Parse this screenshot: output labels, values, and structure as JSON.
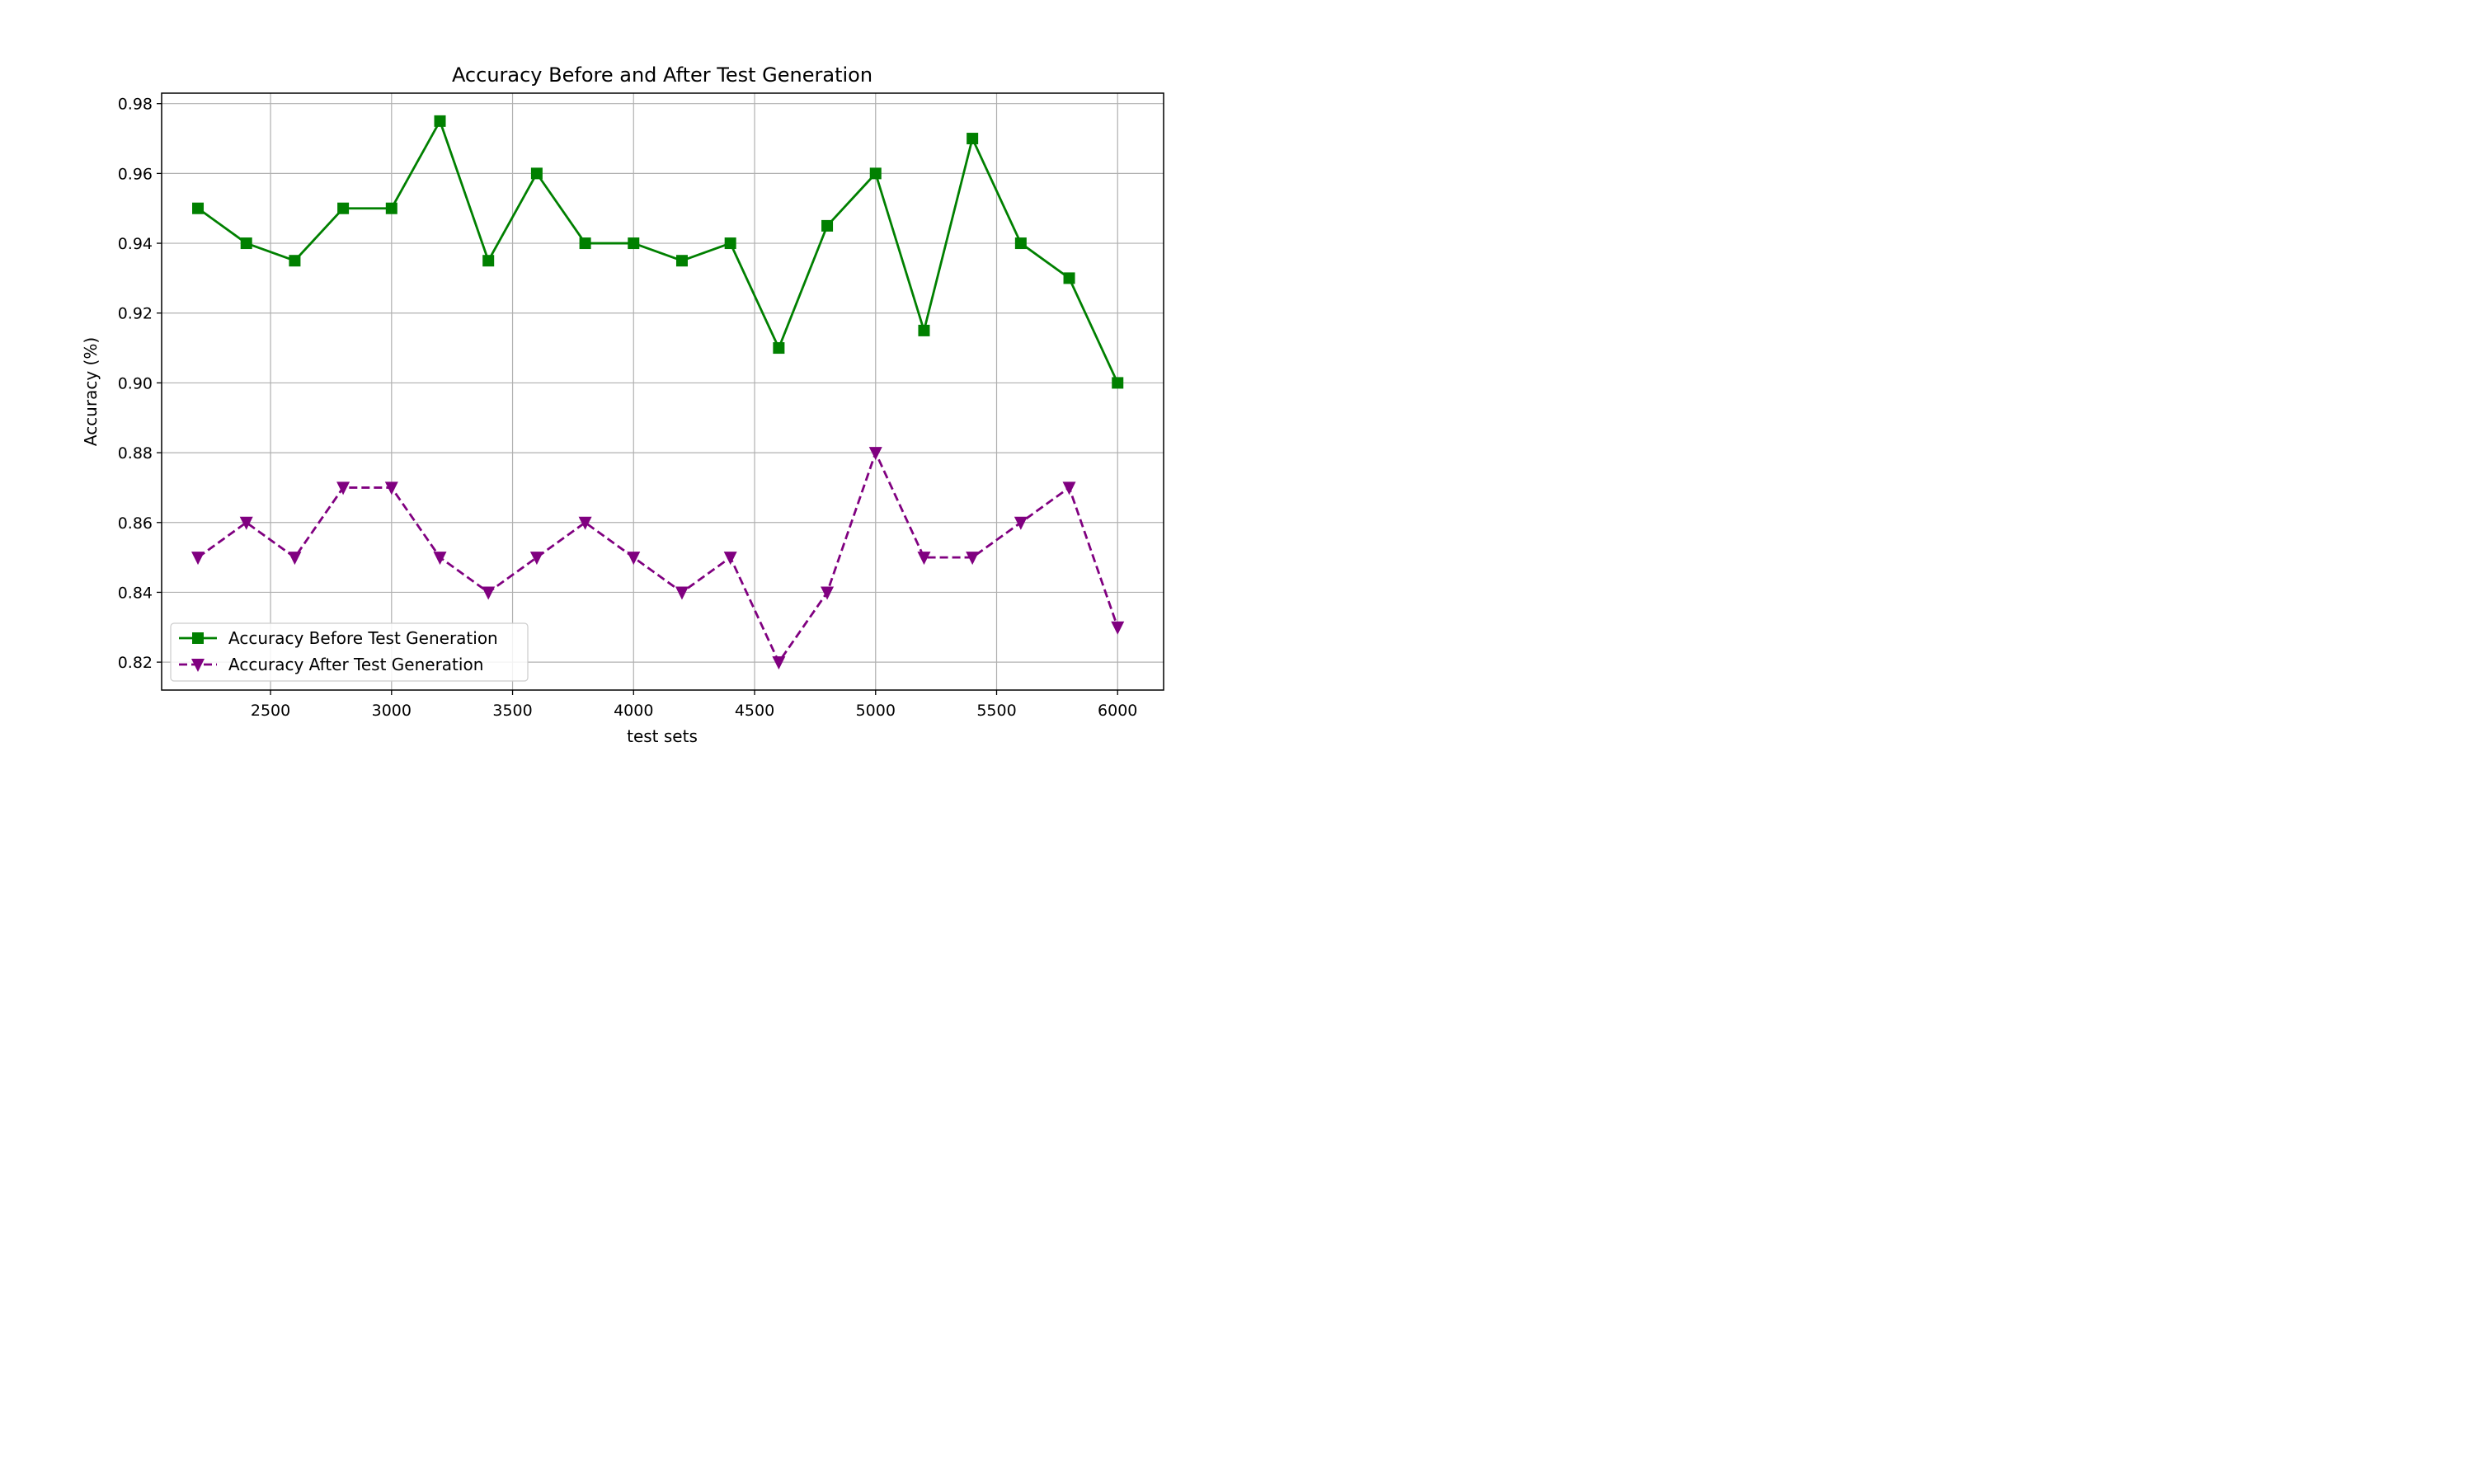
{
  "chart_data": {
    "type": "line",
    "title": "Accuracy Before and After Test Generation",
    "xlabel": "test sets",
    "ylabel": "Accuracy (%)",
    "x": [
      2200,
      2400,
      2600,
      2800,
      3000,
      3200,
      3400,
      3600,
      3800,
      4000,
      4200,
      4400,
      4600,
      4800,
      5000,
      5200,
      5400,
      5600,
      5800,
      6000
    ],
    "xlim": [
      2050,
      6190
    ],
    "ylim": [
      0.812,
      0.983
    ],
    "xticks": [
      2500,
      3000,
      3500,
      4000,
      4500,
      5000,
      5500,
      6000
    ],
    "yticks": [
      0.82,
      0.84,
      0.86,
      0.88,
      0.9,
      0.92,
      0.94,
      0.96,
      0.98
    ],
    "xtick_labels": [
      "2500",
      "3000",
      "3500",
      "4000",
      "4500",
      "5000",
      "5500",
      "6000"
    ],
    "ytick_labels": [
      "0.82",
      "0.84",
      "0.86",
      "0.88",
      "0.90",
      "0.92",
      "0.94",
      "0.96",
      "0.98"
    ],
    "grid": true,
    "legend_position": "lower-left",
    "series": [
      {
        "name": "Accuracy Before Test Generation",
        "color": "#008000",
        "line_style": "solid",
        "marker": "square",
        "values": [
          0.95,
          0.94,
          0.935,
          0.95,
          0.95,
          0.975,
          0.935,
          0.96,
          0.94,
          0.94,
          0.935,
          0.94,
          0.91,
          0.945,
          0.96,
          0.915,
          0.97,
          0.94,
          0.93,
          0.9
        ]
      },
      {
        "name": "Accuracy After Test Generation",
        "color": "#800080",
        "line_style": "dashed",
        "marker": "triangle-down",
        "values": [
          0.85,
          0.86,
          0.85,
          0.87,
          0.87,
          0.85,
          0.84,
          0.85,
          0.86,
          0.85,
          0.84,
          0.85,
          0.82,
          0.84,
          0.88,
          0.85,
          0.85,
          0.86,
          0.87,
          0.83
        ]
      }
    ]
  }
}
